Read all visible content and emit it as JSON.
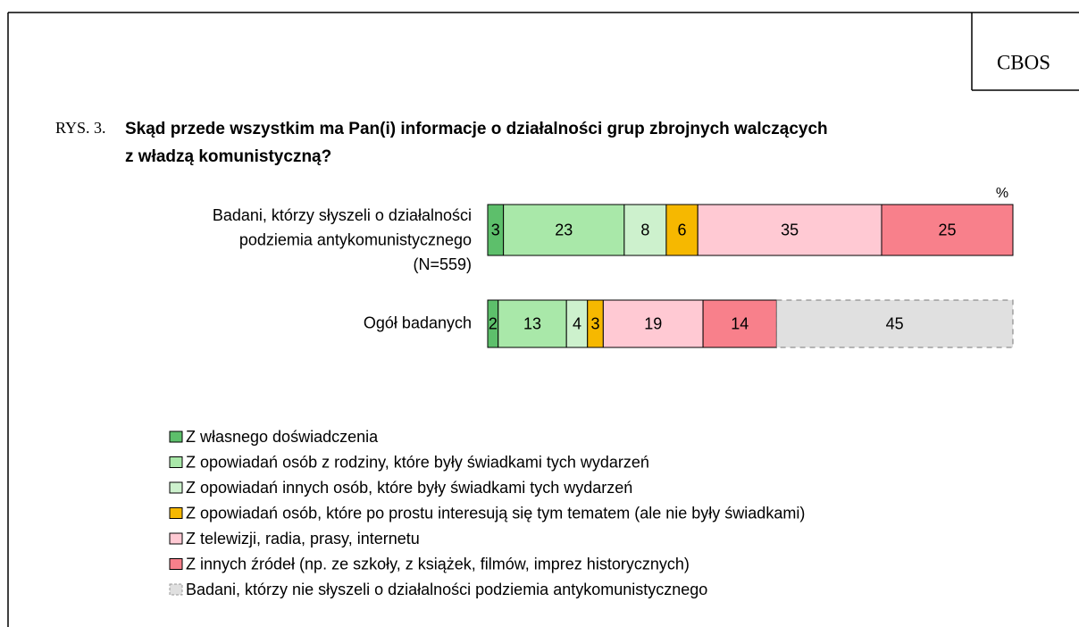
{
  "chart_data": {
    "type": "stacked-bar-horizontal",
    "source": "CBOS",
    "title_prefix": "RYS. 3.",
    "title": [
      "Skąd przede wszystkim ma Pan(i) informacje o działalności grup zbrojnych walczących",
      "z władzą komunistyczną?"
    ],
    "unit_label": "%",
    "categories": [
      [
        "Badani, którzy słyszeli o działalności",
        "podziemia antykomunistycznego",
        "(N=559)"
      ],
      [
        "Ogół badanych"
      ]
    ],
    "xlim": [
      0,
      100
    ],
    "series": [
      {
        "name": "Z własnego doświadczenia",
        "color": "#5dbf6b",
        "values": [
          3,
          2
        ]
      },
      {
        "name": "Z opowiadań osób z rodziny, które były świadkami tych wydarzeń",
        "color": "#a9e8a9",
        "values": [
          23,
          13
        ]
      },
      {
        "name": "Z opowiadań innych osób, które były świadkami tych wydarzeń",
        "color": "#cdf1cd",
        "values": [
          8,
          4
        ]
      },
      {
        "name": "Z opowiadań osób, które po prostu interesują się tym tematem (ale nie były świadkami)",
        "color": "#f6b800",
        "values": [
          6,
          3
        ]
      },
      {
        "name": "Z telewizji, radia, prasy, internetu",
        "color": "#ffc9d3",
        "values": [
          35,
          19
        ]
      },
      {
        "name": "Z innych źródeł (np. ze szkoły, z książek, filmów, imprez historycznych)",
        "color": "#f8808b",
        "values": [
          25,
          14
        ]
      },
      {
        "name": "Badani, którzy nie słyszeli o działalności podziemia antykomunistycznego",
        "color": "#e0e0e0",
        "dashed": true,
        "values": [
          null,
          45
        ]
      }
    ]
  }
}
